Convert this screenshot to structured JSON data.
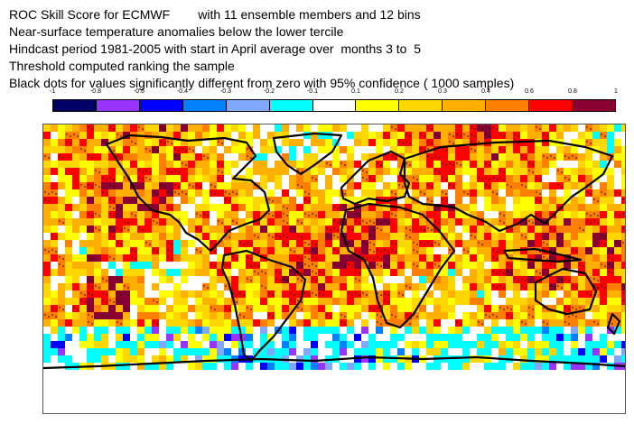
{
  "title_lines": [
    "ROC Skill Score for ECMWF        with 11 ensemble members and 12 bins",
    "Near-surface temperature anomalies below the lower tercile",
    "Hindcast period 1981-2005 with start in April average over  months 3 to  5",
    "Threshold computed ranking the sample",
    "Black dots for values significantly different from zero with 95% confidence ( 1000 samples)"
  ],
  "colorbar": {
    "tick_labels": [
      "-1",
      "-0.8",
      "-0.6",
      "-0.4",
      "-0.3",
      "-0.2",
      "-0.1",
      "0.1",
      "0.2",
      "0.3",
      "0.4",
      "0.6",
      "0.8",
      "1"
    ],
    "colors": [
      "#000066",
      "#9933ff",
      "#0000ff",
      "#0080ff",
      "#80a8ff",
      "#00ffff",
      "#ffffff",
      "#ffff00",
      "#ffd700",
      "#ffb000",
      "#ff8000",
      "#ff0000",
      "#8b0033"
    ]
  },
  "map": {
    "variable": "ROC Skill Score",
    "coastline_color": "#000000",
    "stipple_color": "#000000"
  }
}
